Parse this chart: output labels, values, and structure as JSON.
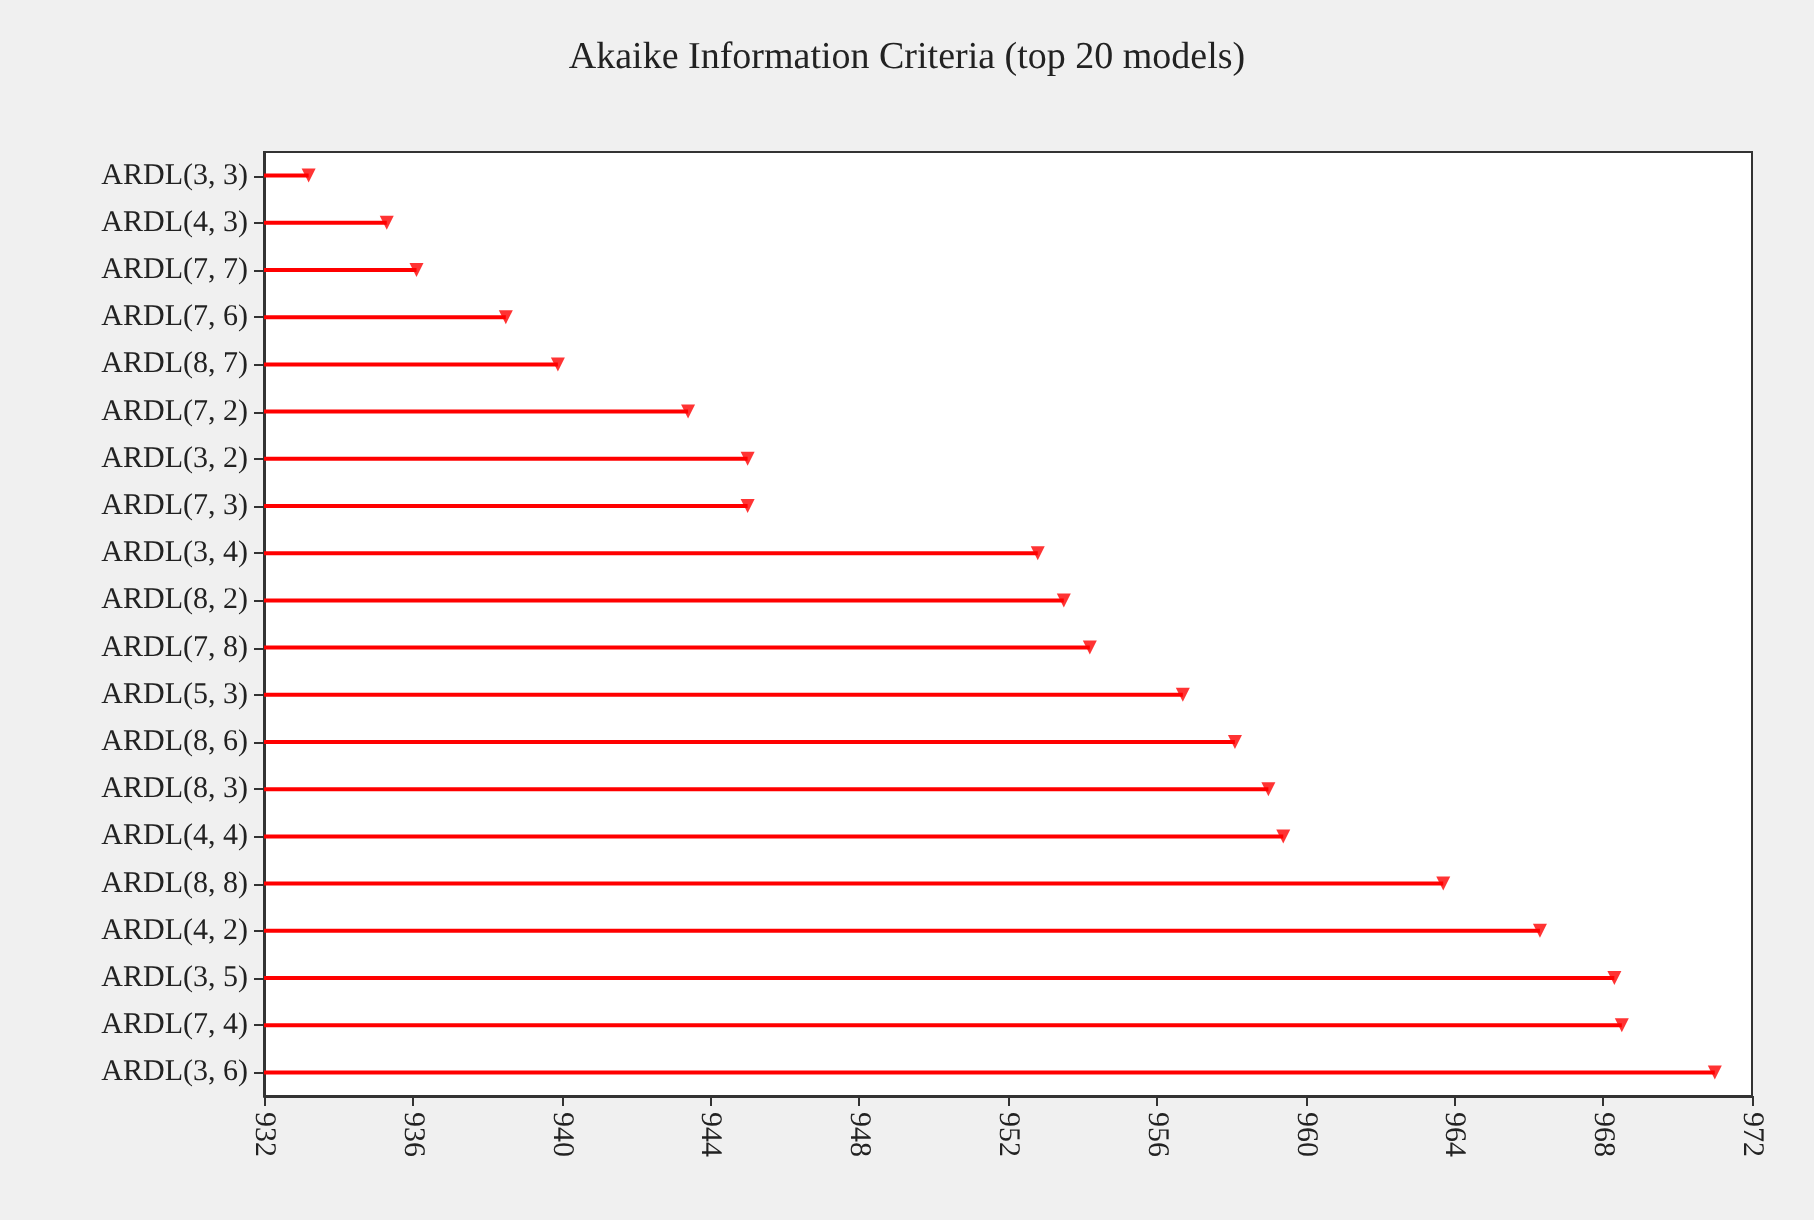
{
  "chart_data": {
    "type": "lollipop",
    "title": "Akaike Information Criteria (top 20 models)",
    "orientation": "horizontal",
    "categories": [
      "ARDL(3, 3)",
      "ARDL(4, 3)",
      "ARDL(7, 7)",
      "ARDL(7, 6)",
      "ARDL(8, 7)",
      "ARDL(7, 2)",
      "ARDL(3, 2)",
      "ARDL(7, 3)",
      "ARDL(3, 4)",
      "ARDL(8, 2)",
      "ARDL(7, 8)",
      "ARDL(5, 3)",
      "ARDL(8, 6)",
      "ARDL(8, 3)",
      "ARDL(4, 4)",
      "ARDL(8, 8)",
      "ARDL(4, 2)",
      "ARDL(3, 5)",
      "ARDL(7, 4)",
      "ARDL(3, 6)"
    ],
    "values": [
      933.2,
      935.3,
      936.1,
      938.5,
      939.9,
      943.4,
      945.0,
      945.0,
      952.8,
      953.5,
      954.2,
      956.7,
      958.1,
      959.0,
      959.4,
      963.7,
      966.3,
      968.3,
      968.5,
      971.0
    ],
    "color": "#ff0000",
    "marker": "triangle",
    "xlim": [
      932,
      972
    ],
    "xticks": [
      932,
      936,
      940,
      944,
      948,
      952,
      956,
      960,
      964,
      968,
      972
    ]
  }
}
